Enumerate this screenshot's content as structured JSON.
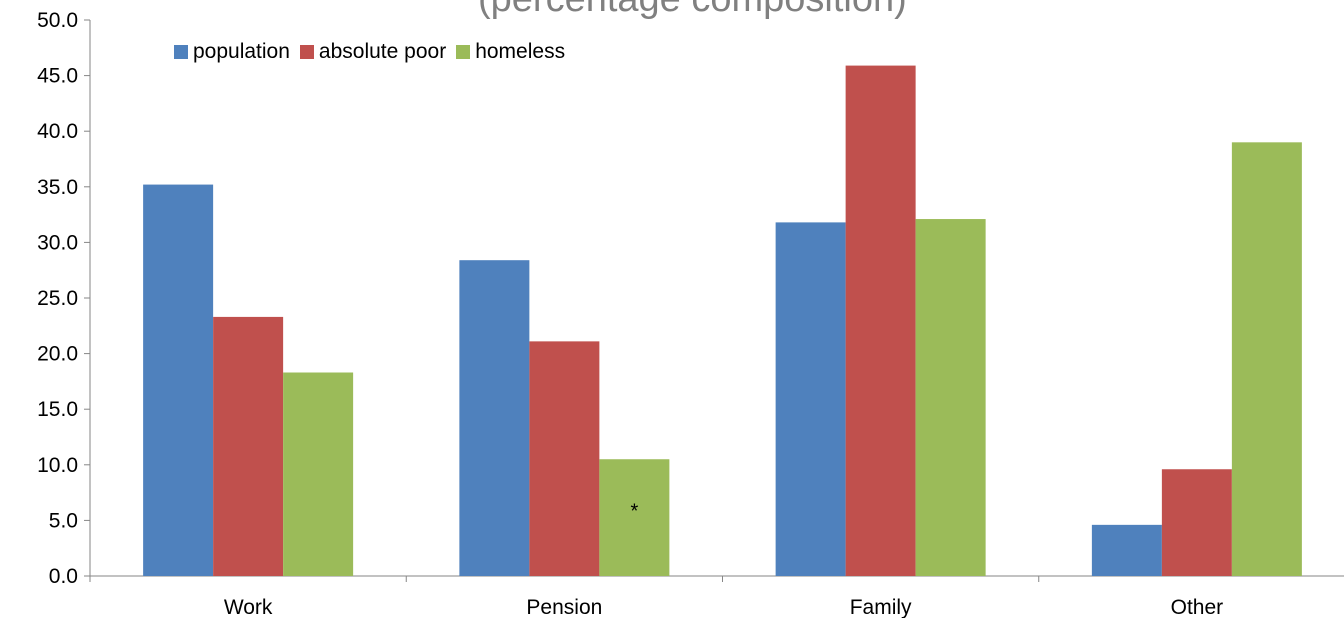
{
  "chart_data": {
    "type": "bar",
    "title": "(percentage composition)",
    "categories": [
      "Work",
      "Pension",
      "Family",
      "Other"
    ],
    "series": [
      {
        "name": "population",
        "color": "#4f81bd",
        "values": [
          35.2,
          28.4,
          31.8,
          4.6
        ]
      },
      {
        "name": "absolute poor",
        "color": "#c0504d",
        "values": [
          23.3,
          21.1,
          45.9,
          9.6
        ]
      },
      {
        "name": "homeless",
        "color": "#9bbb59",
        "values": [
          18.3,
          10.5,
          32.1,
          39.0
        ]
      }
    ],
    "ylim": [
      0,
      50
    ],
    "yticks": [
      "0.0",
      "5.0",
      "10.0",
      "15.0",
      "20.0",
      "25.0",
      "30.0",
      "35.0",
      "40.0",
      "45.0",
      "50.0"
    ],
    "annotations": [
      {
        "text": "*",
        "category": "Pension",
        "series": "homeless",
        "y": 6
      }
    ],
    "legend_position": "top-left",
    "grid": false
  }
}
